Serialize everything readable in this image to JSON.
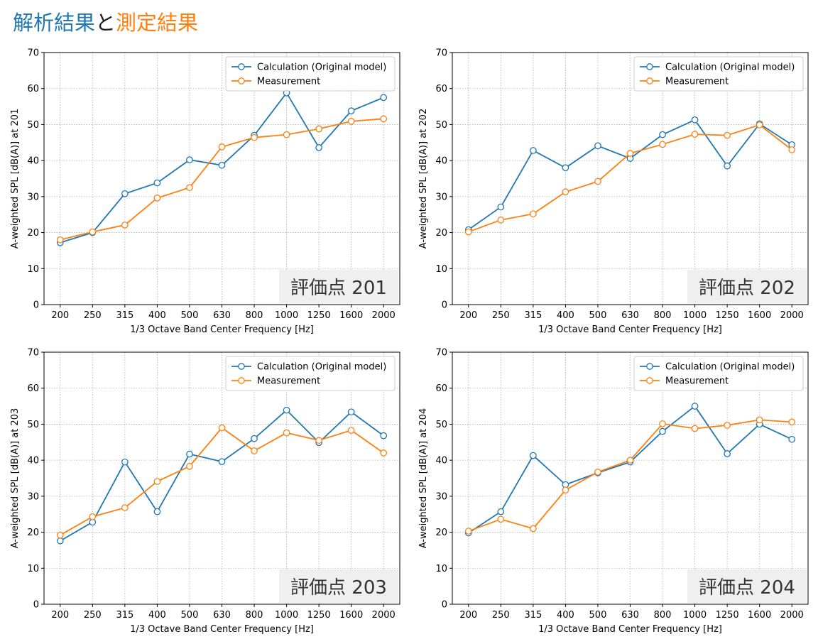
{
  "title": {
    "part1": "解析結果",
    "part2": "と",
    "part3": "測定結果"
  },
  "colors": {
    "calc": "#1f77b4",
    "meas": "#ff7f0e",
    "title_calc": "#1f77b4",
    "title_meas": "#ff7f0e"
  },
  "chart_data": [
    {
      "type": "line",
      "categories": [
        "200",
        "250",
        "315",
        "400",
        "500",
        "630",
        "800",
        "1000",
        "1250",
        "1600",
        "2000"
      ],
      "xlabel": "1/3 Octave Band Center Frequency [Hz]",
      "ylabel": "A-weighted SPL [dB(A)] at 201",
      "ylim": [
        0,
        70
      ],
      "yticks": [
        0,
        10,
        20,
        30,
        40,
        50,
        60,
        70
      ],
      "grid": true,
      "legend": "top-right",
      "badge": "評価点 201",
      "series": [
        {
          "name": "Calculation (Original model)",
          "values": [
            17.2,
            20.0,
            30.8,
            33.8,
            40.2,
            38.7,
            47.0,
            58.8,
            43.6,
            53.8,
            57.5
          ]
        },
        {
          "name": "Measurement",
          "values": [
            18.0,
            20.2,
            22.1,
            29.6,
            32.5,
            43.8,
            46.4,
            47.2,
            48.8,
            50.9,
            51.6
          ]
        }
      ]
    },
    {
      "type": "line",
      "categories": [
        "200",
        "250",
        "315",
        "400",
        "500",
        "630",
        "800",
        "1000",
        "1250",
        "1600",
        "2000"
      ],
      "xlabel": "1/3 Octave Band Center Frequency [Hz]",
      "ylabel": "A-weighted SPL [dB(A)] at 202",
      "ylim": [
        0,
        70
      ],
      "yticks": [
        0,
        10,
        20,
        30,
        40,
        50,
        60,
        70
      ],
      "grid": true,
      "legend": "top-right",
      "badge": "評価点 202",
      "series": [
        {
          "name": "Calculation (Original model)",
          "values": [
            20.8,
            27.1,
            42.8,
            38.0,
            44.1,
            40.6,
            47.2,
            51.3,
            38.5,
            50.2,
            44.4
          ]
        },
        {
          "name": "Measurement",
          "values": [
            20.2,
            23.5,
            25.2,
            31.3,
            34.2,
            42.0,
            44.5,
            47.3,
            47.0,
            49.9,
            43.0
          ]
        }
      ]
    },
    {
      "type": "line",
      "categories": [
        "200",
        "250",
        "315",
        "400",
        "500",
        "630",
        "800",
        "1000",
        "1250",
        "1600",
        "2000"
      ],
      "xlabel": "1/3 Octave Band Center Frequency [Hz]",
      "ylabel": "A-weighted SPL [dB(A)] at 203",
      "ylim": [
        0,
        70
      ],
      "yticks": [
        0,
        10,
        20,
        30,
        40,
        50,
        60,
        70
      ],
      "grid": true,
      "legend": "top-right",
      "badge": "評価点 203",
      "series": [
        {
          "name": "Calculation (Original model)",
          "values": [
            17.6,
            22.8,
            39.5,
            25.7,
            41.7,
            39.6,
            46.0,
            53.9,
            44.9,
            53.4,
            46.8
          ]
        },
        {
          "name": "Measurement",
          "values": [
            19.2,
            24.3,
            26.8,
            34.1,
            38.3,
            49.0,
            42.6,
            47.6,
            45.5,
            48.3,
            42.0
          ]
        }
      ]
    },
    {
      "type": "line",
      "categories": [
        "200",
        "250",
        "315",
        "400",
        "500",
        "630",
        "800",
        "1000",
        "1250",
        "1600",
        "2000"
      ],
      "xlabel": "1/3 Octave Band Center Frequency [Hz]",
      "ylabel": "A-weighted SPL [dB(A)] at 204",
      "ylim": [
        0,
        70
      ],
      "yticks": [
        0,
        10,
        20,
        30,
        40,
        50,
        60,
        70
      ],
      "grid": true,
      "legend": "top-right",
      "badge": "評価点 204",
      "series": [
        {
          "name": "Calculation (Original model)",
          "values": [
            19.8,
            25.7,
            41.3,
            33.2,
            36.5,
            39.5,
            48.0,
            55.0,
            41.8,
            50.0,
            45.8
          ]
        },
        {
          "name": "Measurement",
          "values": [
            20.3,
            23.6,
            21.0,
            31.7,
            36.7,
            40.0,
            50.1,
            48.8,
            49.7,
            51.2,
            50.6
          ]
        }
      ]
    }
  ]
}
